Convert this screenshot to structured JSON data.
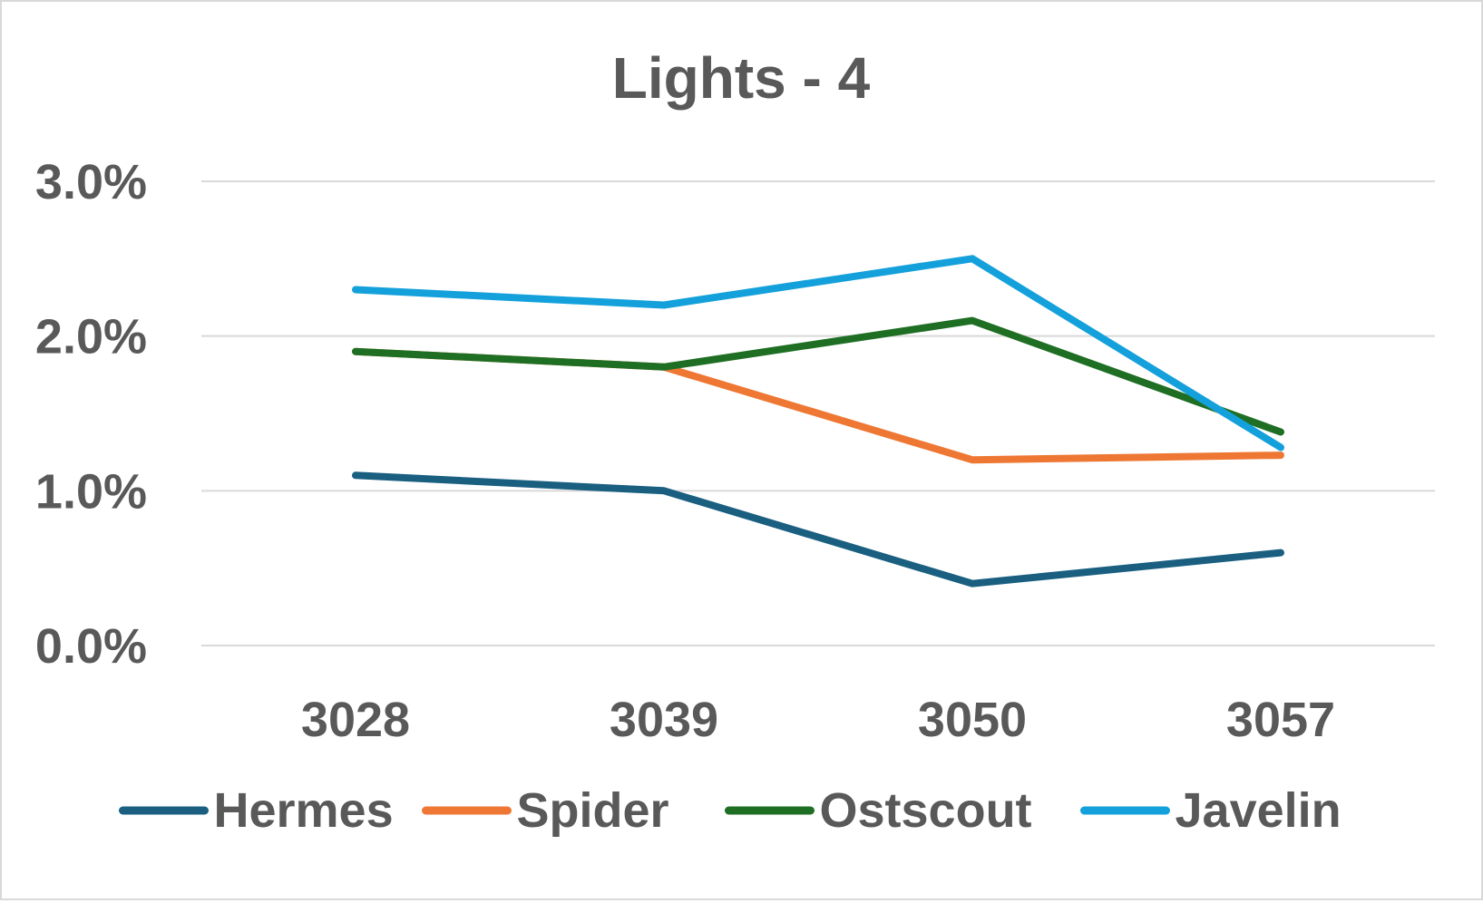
{
  "chart_data": {
    "type": "line",
    "title": "Lights - 4",
    "xlabel": "",
    "ylabel": "",
    "categories": [
      "3028",
      "3039",
      "3050",
      "3057"
    ],
    "y_tick_labels": [
      "0.0%",
      "1.0%",
      "2.0%",
      "3.0%"
    ],
    "y_tick_values": [
      0,
      1,
      2,
      3
    ],
    "ylim": [
      0,
      3
    ],
    "y_unit": "%",
    "grid": true,
    "legend_position": "bottom",
    "series": [
      {
        "name": "Hermes",
        "color": "#1a5f80",
        "values": [
          1.1,
          1.0,
          0.4,
          0.6
        ]
      },
      {
        "name": "Spider",
        "color": "#ee7733",
        "values": [
          1.9,
          1.8,
          1.2,
          1.23
        ]
      },
      {
        "name": "Ostscout",
        "color": "#1e6e23",
        "values": [
          1.9,
          1.8,
          2.1,
          1.38
        ]
      },
      {
        "name": "Javelin",
        "color": "#13a0db",
        "values": [
          2.3,
          2.2,
          2.5,
          1.28
        ]
      }
    ]
  }
}
